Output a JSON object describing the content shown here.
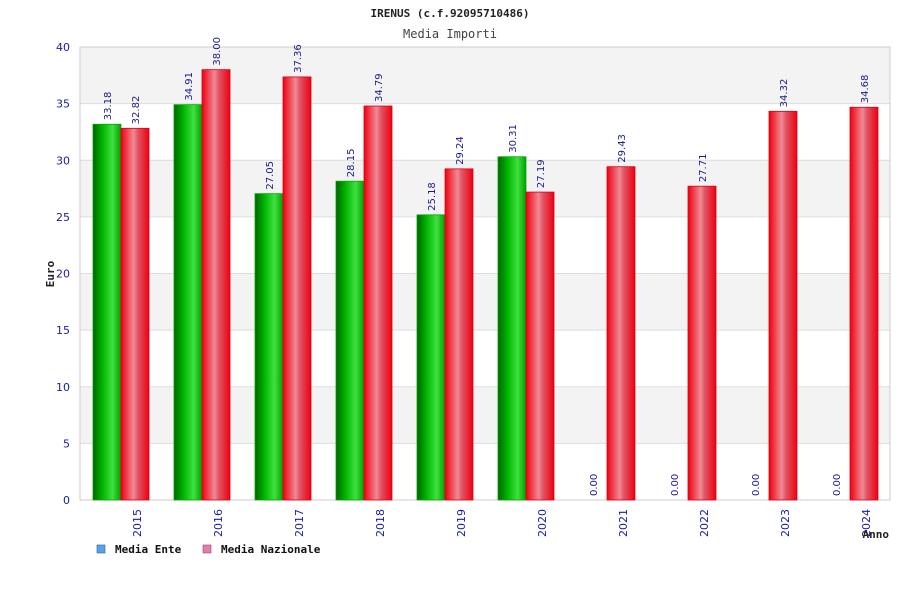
{
  "chart_data": {
    "type": "bar",
    "title": "IRENUS (c.f.92095710486)",
    "subtitle": "Media Importi",
    "xlabel": "Anno",
    "ylabel": "Euro",
    "ylim": [
      0,
      40
    ],
    "yticks": [
      0,
      5,
      10,
      15,
      20,
      25,
      30,
      35,
      40
    ],
    "grid": true,
    "legend_position": "bottom-left",
    "categories": [
      "2015",
      "2016",
      "2017",
      "2018",
      "2019",
      "2020",
      "2021",
      "2022",
      "2023",
      "2024"
    ],
    "series": [
      {
        "name": "Media Ente",
        "color": "#00b000",
        "legend_color": "#5aa0e8",
        "values": [
          33.18,
          34.91,
          27.05,
          28.15,
          25.18,
          30.31,
          0.0,
          0.0,
          0.0,
          0.0
        ],
        "labels": [
          "33.18",
          "34.91",
          "27.05",
          "28.15",
          "25.18",
          "30.31",
          "0.00",
          "0.00",
          "0.00",
          "0.00"
        ]
      },
      {
        "name": "Media Nazionale",
        "color": "#ee1122",
        "legend_color": "#e080b0",
        "values": [
          32.82,
          38.0,
          37.36,
          34.79,
          29.24,
          27.19,
          29.43,
          27.71,
          34.32,
          34.68
        ],
        "labels": [
          "32.82",
          "38.00",
          "37.36",
          "34.79",
          "29.24",
          "27.19",
          "29.43",
          "27.71",
          "34.32",
          "34.68"
        ]
      }
    ]
  }
}
